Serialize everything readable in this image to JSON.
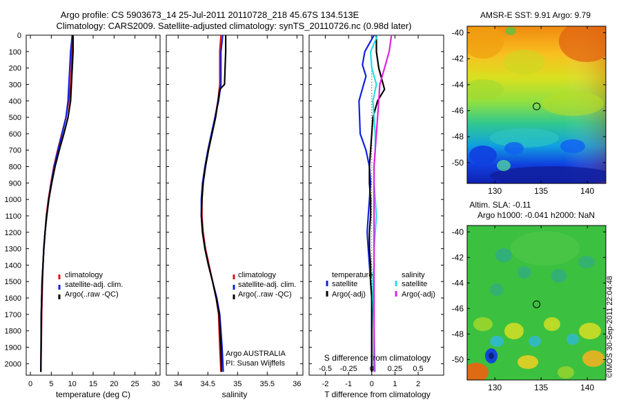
{
  "title_line1": "Argo profile: CS 5903673_14 25-Jul-2011 20110728_218 45.67S 134.513E",
  "title_line2": "Climatology: CARS2009. Satellite-adjusted climatology: synTS_20110726.nc (0.98d later)",
  "footer_note": "©IMOS 30-Sep-2011 22:04:48",
  "colors": {
    "red": "#e01010",
    "blue": "#1020e0",
    "black": "#000000",
    "cyan": "#20e0e0",
    "magenta": "#e020e0"
  },
  "chart_data": [
    {
      "type": "line",
      "xlabel": "temperature (deg C)",
      "xlim": [
        -1,
        31
      ],
      "xticks": [
        0,
        5,
        10,
        15,
        20,
        25,
        30
      ],
      "ylim": [
        0,
        2070
      ],
      "yticks": [
        0,
        100,
        200,
        300,
        400,
        500,
        600,
        700,
        800,
        900,
        1000,
        1100,
        1200,
        1300,
        1400,
        1500,
        1600,
        1700,
        1800,
        1900,
        2000
      ],
      "legend": [
        "climatology",
        "satellite-adj. clim.",
        "Argo(..raw -QC)"
      ],
      "series": [
        {
          "name": "climatology",
          "color": "#e01010",
          "x": [
            10.0,
            9.9,
            9.8,
            9.6,
            9.2,
            8.5,
            7.5,
            6.5,
            5.6,
            4.9,
            4.3,
            3.8,
            3.5,
            3.2,
            3.0,
            2.9,
            2.8,
            2.7,
            2.6,
            2.5
          ],
          "y": [
            0,
            100,
            200,
            300,
            400,
            500,
            600,
            700,
            800,
            900,
            1000,
            1100,
            1200,
            1300,
            1400,
            1500,
            1600,
            1700,
            1900,
            2050
          ]
        },
        {
          "name": "satellite-adj. clim.",
          "color": "#1020e0",
          "x": [
            10.0,
            9.6,
            9.4,
            9.2,
            9.0,
            8.5,
            7.6,
            6.6,
            5.7,
            5.0,
            4.4,
            3.9,
            3.5,
            3.2,
            3.0,
            2.8,
            2.7,
            2.6,
            2.55,
            2.5
          ],
          "y": [
            0,
            100,
            200,
            300,
            400,
            500,
            600,
            700,
            800,
            900,
            1000,
            1100,
            1200,
            1300,
            1400,
            1500,
            1600,
            1700,
            1900,
            2050
          ]
        },
        {
          "name": "Argo(..raw -QC)",
          "color": "#000000",
          "x": [
            10.2,
            10.2,
            10.0,
            9.8,
            9.6,
            9.0,
            8.0,
            6.9,
            5.9,
            5.1,
            4.4,
            3.9,
            3.5,
            3.2,
            3.0,
            2.8,
            2.7,
            2.6,
            2.55,
            2.5
          ],
          "y": [
            0,
            100,
            200,
            300,
            400,
            500,
            600,
            700,
            800,
            900,
            1000,
            1100,
            1200,
            1300,
            1400,
            1500,
            1600,
            1700,
            1900,
            2050
          ]
        }
      ]
    },
    {
      "type": "line",
      "xlabel": "salinity",
      "xlim": [
        33.8,
        36.1
      ],
      "xticks": [
        34,
        34.5,
        35,
        35.5,
        36
      ],
      "ylim": [
        0,
        2070
      ],
      "legend": [
        "climatology",
        "satellite-adj. clim.",
        "Argo(..raw -QC)"
      ],
      "annotation": [
        "Argo AUSTRALIA",
        "PI: Susan Wijffels"
      ],
      "series": [
        {
          "name": "climatology",
          "color": "#e01010",
          "x": [
            34.72,
            34.7,
            34.7,
            34.7,
            34.67,
            34.62,
            34.57,
            34.51,
            34.46,
            34.42,
            34.4,
            34.4,
            34.42,
            34.46,
            34.52,
            34.58,
            34.64,
            34.68,
            34.7,
            34.72
          ],
          "y": [
            0,
            100,
            200,
            300,
            400,
            500,
            600,
            700,
            800,
            900,
            1000,
            1100,
            1200,
            1300,
            1400,
            1500,
            1600,
            1700,
            1900,
            2050
          ]
        },
        {
          "name": "satellite-adj. clim.",
          "color": "#1020e0",
          "x": [
            34.75,
            34.72,
            34.72,
            34.72,
            34.68,
            34.62,
            34.56,
            34.5,
            34.45,
            34.41,
            34.39,
            34.39,
            34.41,
            34.45,
            34.51,
            34.58,
            34.65,
            34.7,
            34.74,
            34.76
          ],
          "y": [
            0,
            100,
            200,
            300,
            400,
            500,
            600,
            700,
            800,
            900,
            1000,
            1100,
            1200,
            1300,
            1400,
            1500,
            1600,
            1700,
            1900,
            2050
          ]
        },
        {
          "name": "Argo(..raw -QC)",
          "color": "#000000",
          "x": [
            34.8,
            34.8,
            34.79,
            34.78,
            34.7,
            34.63,
            34.57,
            34.51,
            34.46,
            34.42,
            34.4,
            34.39,
            34.41,
            34.45,
            34.51,
            34.58,
            34.64,
            34.69,
            34.72,
            34.73
          ],
          "y": [
            0,
            100,
            200,
            300,
            330,
            500,
            600,
            700,
            800,
            900,
            1000,
            1100,
            1200,
            1300,
            1400,
            1500,
            1600,
            1700,
            1900,
            2050
          ]
        }
      ]
    },
    {
      "type": "line",
      "xlabel": "T difference from climatology",
      "xlabel_top": "S difference from climatology",
      "xlim": [
        -2.7,
        3.1
      ],
      "xticks": [
        -2,
        -1,
        0,
        1,
        2
      ],
      "xticks_top": [
        "-0.5",
        "-0.25",
        "0",
        "0.25",
        "0.5"
      ],
      "xticks_top_pos": [
        -2,
        -1,
        0,
        1,
        2
      ],
      "ylim": [
        0,
        2070
      ],
      "legend_left_title": "temperature",
      "legend_left": [
        "satellite",
        "Argo(-adj)"
      ],
      "legend_right_title": "salinity",
      "legend_right": [
        "satellite",
        "Argo(-adj)"
      ],
      "series": [
        {
          "name": "satellite",
          "color": "#1020e0",
          "x": [
            0.1,
            -0.3,
            -0.4,
            -0.25,
            -0.55,
            -0.5,
            -0.25,
            -0.1,
            -0.05,
            -0.1,
            -0.15,
            -0.2,
            -0.15,
            -0.1,
            -0.05,
            0.0,
            0.0,
            0.0,
            0.0
          ],
          "y": [
            0,
            100,
            180,
            250,
            400,
            600,
            700,
            800,
            900,
            1000,
            1100,
            1200,
            1300,
            1400,
            1500,
            1600,
            1700,
            1900,
            2050
          ]
        },
        {
          "name": "Argo(-adj)",
          "color": "#000000",
          "x": [
            0.2,
            0.2,
            0.3,
            0.55,
            0.25,
            0.05,
            -0.05,
            -0.1,
            -0.1,
            -0.05,
            -0.05,
            -0.1,
            -0.1,
            -0.05,
            -0.05,
            0.0,
            0.0,
            0.0,
            0.0
          ],
          "y": [
            0,
            100,
            200,
            330,
            400,
            500,
            700,
            800,
            900,
            1000,
            1100,
            1200,
            1300,
            1400,
            1500,
            1600,
            1700,
            1900,
            2050
          ]
        },
        {
          "name": "satellite",
          "color": "#20e0e0",
          "x": [
            0.25,
            -0.05,
            0.0,
            0.2,
            0.05,
            0.1,
            0.15,
            0.15,
            0.1,
            0.1,
            0.15,
            0.2,
            0.15,
            0.1,
            0.1,
            0.05,
            0.05,
            0.1,
            0.15
          ],
          "y": [
            0,
            100,
            200,
            300,
            400,
            500,
            600,
            700,
            800,
            900,
            1000,
            1100,
            1200,
            1300,
            1400,
            1500,
            1600,
            1800,
            2050
          ]
        },
        {
          "name": "Argo(-adj)",
          "color": "#e020e0",
          "x": [
            0.85,
            0.75,
            0.55,
            0.35,
            0.3,
            0.25,
            0.2,
            0.15,
            0.1,
            0.1,
            0.1,
            0.1,
            0.1,
            0.1,
            0.1,
            0.1,
            0.1,
            0.1,
            0.1
          ],
          "y": [
            0,
            100,
            200,
            300,
            400,
            500,
            600,
            700,
            800,
            900,
            1000,
            1100,
            1200,
            1300,
            1400,
            1500,
            1600,
            1800,
            2050
          ]
        }
      ]
    },
    {
      "type": "heatmap",
      "title": "AMSR-E SST: 9.91 Argo: 9.79",
      "xlim": [
        127,
        142
      ],
      "ylim": [
        -51.6,
        -39.5
      ],
      "xticks": [
        130,
        135,
        140
      ],
      "yticks": [
        -40,
        -42,
        -44,
        -46,
        -48,
        -50
      ],
      "marker": {
        "lon": 134.513,
        "lat": -45.67
      },
      "colorscale": "jet"
    },
    {
      "type": "heatmap",
      "title_line1": "Altim. SLA: -0.11",
      "title_line2": "Argo h1000: -0.041 h2000: NaN",
      "xlim": [
        127,
        142
      ],
      "ylim": [
        -51.6,
        -39.5
      ],
      "xticks": [
        130,
        135,
        140
      ],
      "yticks": [
        -40,
        -42,
        -44,
        -46,
        -48,
        -50
      ],
      "marker": {
        "lon": 134.513,
        "lat": -45.67
      },
      "colorscale": "jet"
    }
  ]
}
